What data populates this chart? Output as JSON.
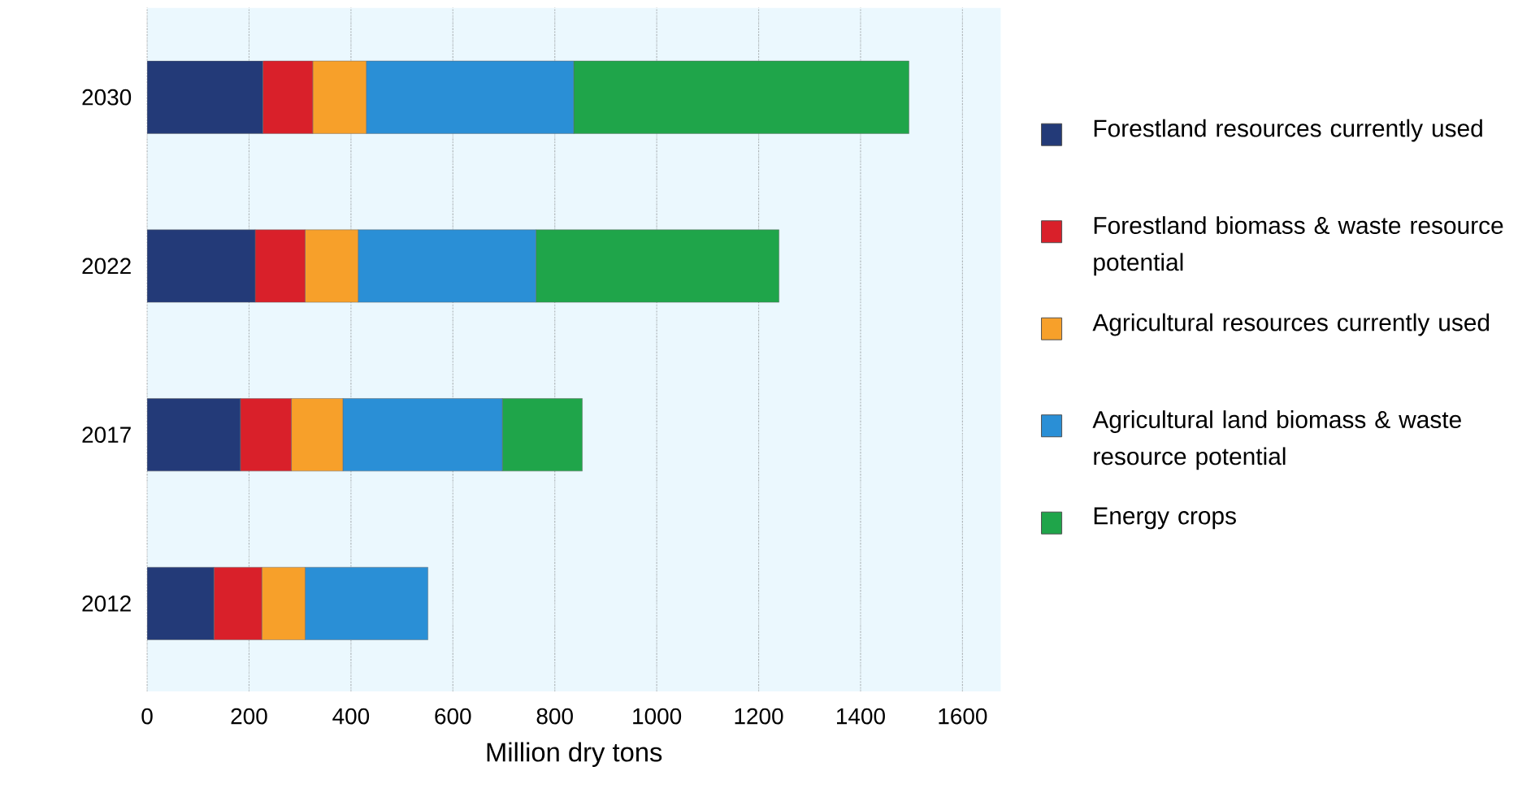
{
  "chart_data": {
    "type": "bar",
    "orientation": "horizontal",
    "stacked": true,
    "xlabel": "Million dry tons",
    "categories": [
      "2030",
      "2022",
      "2017",
      "2012"
    ],
    "series": [
      {
        "name": "Forestland resources currently used",
        "color": "#233a78",
        "values": [
          227,
          212,
          183,
          131
        ]
      },
      {
        "name": "Forestland biomass & waste resource potential",
        "color": "#d9202a",
        "values": [
          98,
          98,
          100,
          94
        ]
      },
      {
        "name": "Agricultural resources currently used",
        "color": "#f7a02a",
        "values": [
          105,
          104,
          101,
          85
        ]
      },
      {
        "name": "Agricultural land biomass & waste resource potential",
        "color": "#2a8fd6",
        "values": [
          407,
          349,
          313,
          241
        ]
      },
      {
        "name": "Energy crops",
        "color": "#1fa54a",
        "values": [
          658,
          477,
          157,
          null
        ]
      }
    ],
    "xlim": [
      0,
      1675
    ],
    "xticks": [
      0,
      200,
      400,
      600,
      800,
      1000,
      1200,
      1400,
      1600
    ],
    "grid": "x",
    "legend": "right"
  }
}
